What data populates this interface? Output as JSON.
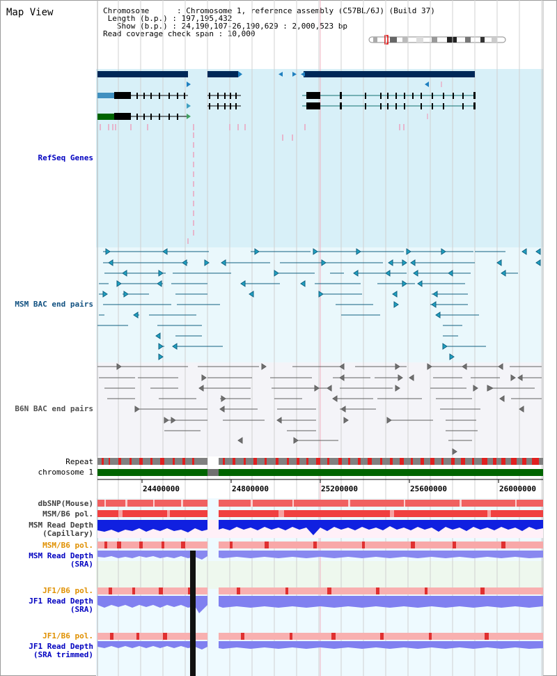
{
  "title": "Map View",
  "info": {
    "chromosome": "Chromosome      : Chromosome 1, reference assembly (C57BL/6J) (Build 37)",
    "length": " Length (b.p.) : 197,195,432",
    "show": "   Show (b.p.) : 24,190,107-26,190,629 : 2,000,523 bp",
    "coverage": "Read coverage check span : 10,000"
  },
  "tracks": {
    "refseq": "RefSeq Genes",
    "msm_bac": "MSM BAC end pairs",
    "b6n_bac": "B6N BAC end pairs",
    "repeat": "Repeat",
    "chromosome": "chromosome 1",
    "dbsnp": "dbSNP(Mouse)",
    "msm_b6_pol_1": "MSM/B6 pol.",
    "msm_read_cap_1": "MSM Read Depth",
    "msm_read_cap_2": "(Capillary)",
    "msm_b6_pol_2": "MSM/B6 pol.",
    "msm_read_sra_1": "MSM Read Depth",
    "msm_read_sra_2": "(SRA)",
    "jf1_b6_pol_1": "JF1/B6 pol.",
    "jf1_read_sra_1": "JF1 Read Depth",
    "jf1_read_sra_2": "(SRA)",
    "jf1_b6_pol_2": "JF1/B6 pol.",
    "jf1_read_trim_1": "JF1 Read Depth",
    "jf1_read_trim_2": "(SRA trimmed)"
  },
  "axis_ticks": [
    "24400000",
    "24800000",
    "25200000",
    "25600000",
    "26000000"
  ],
  "colors": {
    "refseq_bg": "#d8f0f8",
    "bac_bg": "#eaf8fc",
    "gene_dark": "#002858",
    "chrom_green": "#006400",
    "depth_blue": "#2020e0",
    "pol_red": "#f04040",
    "orange_label": "#e09000"
  }
}
